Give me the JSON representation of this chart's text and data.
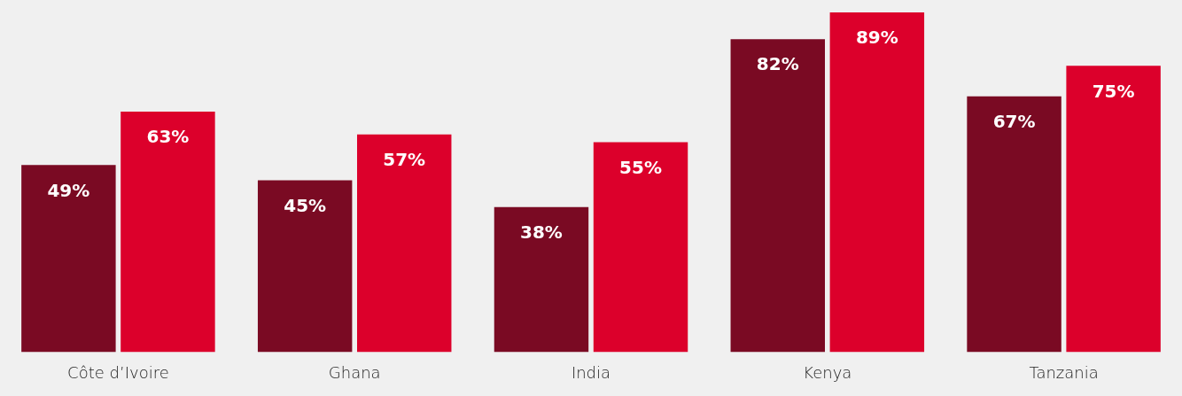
{
  "chart_data": {
    "type": "bar",
    "categories": [
      "Côte d’Ivoire",
      "Ghana",
      "India",
      "Kenya",
      "Tanzania"
    ],
    "series": [
      {
        "color": "#7a0a23",
        "values": [
          49,
          45,
          38,
          82,
          67
        ],
        "value_labels": [
          "49%",
          "45%",
          "38%",
          "82%",
          "67%"
        ]
      },
      {
        "color": "#dc002b",
        "values": [
          63,
          57,
          55,
          89,
          75
        ],
        "value_labels": [
          "63%",
          "57%",
          "55%",
          "89%",
          "75%"
        ]
      }
    ],
    "grid": false,
    "legend": false
  }
}
